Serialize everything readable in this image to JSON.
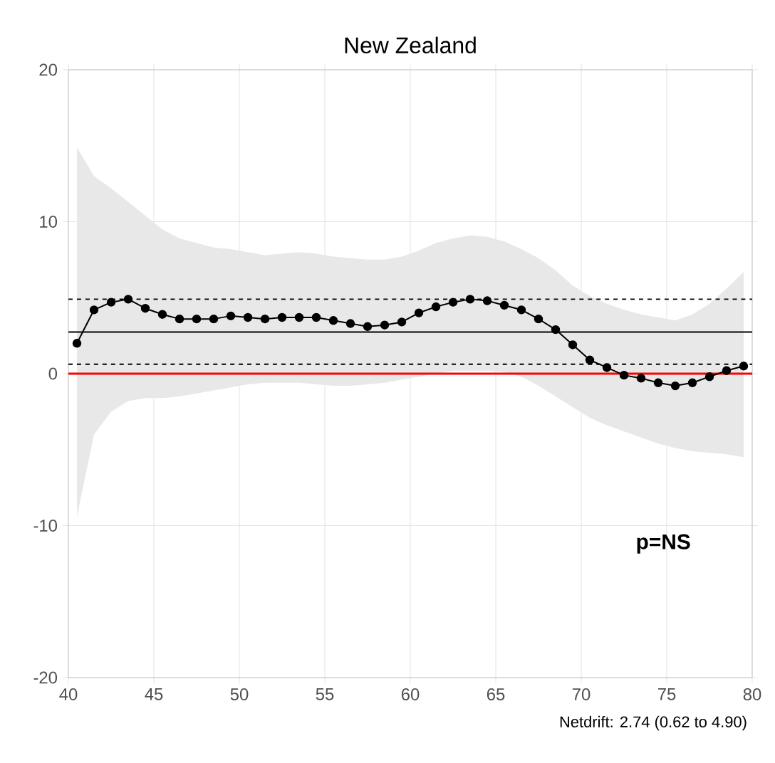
{
  "chart_data": {
    "type": "line",
    "title": "New Zealand",
    "x": [
      40.5,
      41.5,
      42.5,
      43.5,
      44.5,
      45.5,
      46.5,
      47.5,
      48.5,
      49.5,
      50.5,
      51.5,
      52.5,
      53.5,
      54.5,
      55.5,
      56.5,
      57.5,
      58.5,
      59.5,
      60.5,
      61.5,
      62.5,
      63.5,
      64.5,
      65.5,
      66.5,
      67.5,
      68.5,
      69.5,
      70.5,
      71.5,
      72.5,
      73.5,
      74.5,
      75.5,
      76.5,
      77.5,
      78.5,
      79.5
    ],
    "series": [
      {
        "color": "#000000",
        "values": [
          2.0,
          4.2,
          4.7,
          4.9,
          4.3,
          3.9,
          3.6,
          3.6,
          3.6,
          3.8,
          3.7,
          3.6,
          3.7,
          3.7,
          3.7,
          3.5,
          3.3,
          3.1,
          3.2,
          3.4,
          4.0,
          4.4,
          4.7,
          4.9,
          4.8,
          4.5,
          4.2,
          3.6,
          2.9,
          1.9,
          0.9,
          0.4,
          -0.1,
          -0.3,
          -0.6,
          -0.8,
          -0.6,
          -0.2,
          0.2,
          0.5
        ],
        "upper": [
          14.9,
          13.0,
          12.2,
          11.3,
          10.4,
          9.5,
          8.9,
          8.6,
          8.3,
          8.2,
          8.0,
          7.8,
          7.9,
          8.0,
          7.9,
          7.7,
          7.6,
          7.5,
          7.5,
          7.7,
          8.1,
          8.6,
          8.9,
          9.1,
          9.0,
          8.7,
          8.2,
          7.6,
          6.8,
          5.8,
          5.1,
          4.6,
          4.2,
          3.9,
          3.7,
          3.5,
          3.9,
          4.6,
          5.6,
          6.7
        ],
        "lower": [
          -9.4,
          -4.0,
          -2.5,
          -1.8,
          -1.6,
          -1.6,
          -1.5,
          -1.3,
          -1.1,
          -0.9,
          -0.7,
          -0.6,
          -0.6,
          -0.6,
          -0.7,
          -0.8,
          -0.8,
          -0.7,
          -0.6,
          -0.4,
          -0.2,
          0.0,
          0.2,
          0.2,
          0.2,
          0.1,
          -0.2,
          -0.8,
          -1.5,
          -2.2,
          -2.9,
          -3.4,
          -3.8,
          -4.2,
          -4.6,
          -4.9,
          -5.1,
          -5.2,
          -5.3,
          -5.5
        ]
      }
    ],
    "xlim": [
      40,
      80
    ],
    "ylim": [
      -20,
      20
    ],
    "xticks": [
      40,
      45,
      50,
      55,
      60,
      65,
      70,
      75,
      80
    ],
    "yticks": [
      -20,
      -10,
      0,
      10,
      20
    ],
    "ref_lines": [
      {
        "axis": "y",
        "value": 0,
        "color": "#ff0000",
        "line_style": "solid"
      },
      {
        "axis": "y",
        "value": 2.74,
        "color": "#000000",
        "line_style": "solid"
      },
      {
        "axis": "y",
        "value": 0.62,
        "color": "#000000",
        "line_style": "dashed"
      },
      {
        "axis": "y",
        "value": 4.9,
        "color": "#000000",
        "line_style": "dashed"
      }
    ],
    "annotations": [
      "p=NS",
      "Netdrift: 2.74 (0.62 to 4.90)"
    ],
    "grid": true,
    "marker": "circle",
    "line_style": "solid"
  }
}
